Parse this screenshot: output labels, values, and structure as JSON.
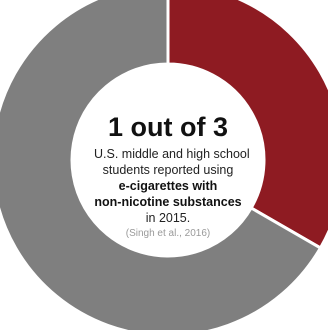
{
  "colors": {
    "highlight": "#8e1b22",
    "remainder": "#7f7f7f",
    "background": "#ffffff"
  },
  "chart_data": {
    "type": "pie",
    "donut": true,
    "slices": [
      {
        "fraction": 0.3333,
        "color": "#8e1b22"
      },
      {
        "fraction": 0.6667,
        "color": "#7f7f7f"
      }
    ]
  },
  "center": {
    "headline": "1 out of 3",
    "line1": "U.S. middle and high school",
    "line2": "students reported using",
    "line3": "e-cigarettes with",
    "line4": "non-nicotine substances",
    "line5": "in 2015.",
    "citation": "(Singh et al., 2016)"
  }
}
